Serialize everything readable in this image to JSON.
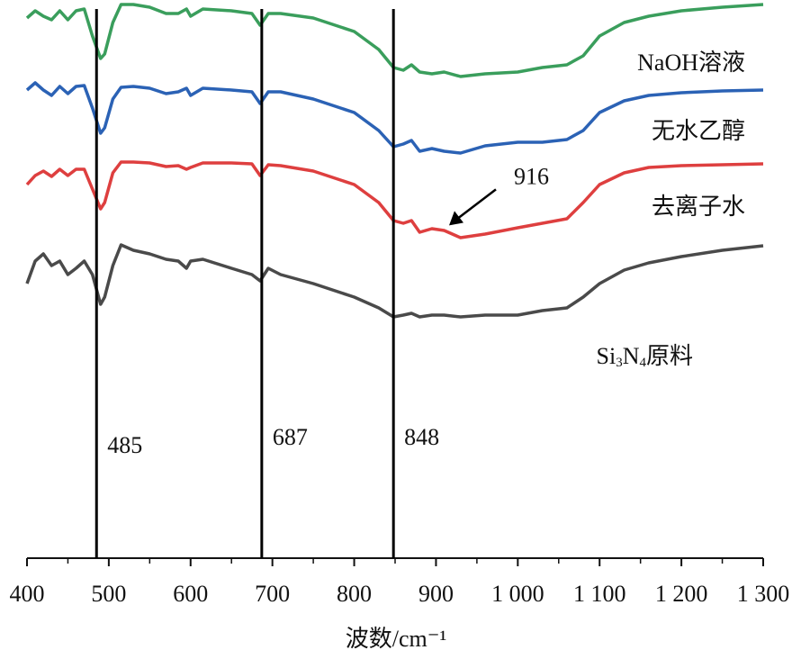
{
  "chart_data": {
    "type": "line",
    "x_label": "波数/cm⁻¹",
    "x": [
      400,
      410,
      420,
      430,
      440,
      450,
      460,
      470,
      480,
      490,
      495,
      505,
      515,
      530,
      550,
      570,
      585,
      595,
      600,
      615,
      650,
      675,
      685,
      695,
      710,
      750,
      800,
      830,
      848,
      860,
      870,
      880,
      895,
      910,
      930,
      960,
      1000,
      1030,
      1060,
      1080,
      1100,
      1130,
      1160,
      1200,
      1250,
      1300
    ],
    "series": [
      {
        "name": "NaOH溶液",
        "color": "#3a9e5c",
        "values": [
          120,
          121.6,
          120.4,
          119.6,
          121.6,
          119.6,
          121.6,
          122,
          116,
          111,
          112,
          119,
          123,
          123,
          122.4,
          121,
          121,
          122,
          120.4,
          122,
          121.6,
          121,
          118.4,
          121,
          121,
          120,
          117,
          113,
          109,
          108.4,
          109.6,
          108,
          107.6,
          108,
          107,
          107.6,
          108,
          109,
          109.6,
          111.6,
          116,
          119,
          120.4,
          121.6,
          122.4,
          123
        ]
      },
      {
        "name": "无水乙醇",
        "color": "#2b62b5",
        "values": [
          104,
          105.6,
          104,
          102.8,
          104.8,
          103.2,
          104.8,
          105,
          100,
          94.4,
          95.6,
          102,
          104.6,
          104.8,
          104.4,
          103.2,
          103.6,
          104.4,
          102.8,
          104.4,
          104,
          103.6,
          101,
          103.6,
          103.6,
          102,
          99,
          95,
          91.4,
          92,
          92.8,
          90.4,
          91,
          90.4,
          90,
          91.6,
          92.4,
          92.4,
          93,
          95,
          99,
          101.6,
          102.8,
          103.4,
          103.8,
          104
        ]
      },
      {
        "name": "去离子水",
        "color": "#de3f3f",
        "values": [
          83,
          85,
          86,
          84.8,
          86.4,
          85,
          86.4,
          86.4,
          82,
          77.6,
          79,
          85.6,
          88,
          88,
          87.8,
          87,
          87.2,
          86.4,
          86.8,
          87.8,
          87.8,
          87.6,
          85,
          87.4,
          87.2,
          86,
          83,
          79,
          75,
          74.4,
          75,
          72.4,
          73.2,
          72.8,
          71.2,
          72,
          73.4,
          74.4,
          75.4,
          79,
          83,
          85.6,
          86.8,
          87.2,
          87.4,
          87.6
        ]
      },
      {
        "name": "Si3N4原料",
        "color": "#4a4a4a",
        "values": [
          61,
          66,
          67.6,
          65,
          66,
          63,
          64.4,
          66,
          63,
          56.4,
          58,
          65,
          69.6,
          68.4,
          67.6,
          66.4,
          66,
          64.4,
          66,
          66.4,
          64.4,
          63,
          61.6,
          64.4,
          63,
          61,
          58,
          55.6,
          53.6,
          54,
          54.4,
          53.6,
          54,
          54,
          53.6,
          54,
          54,
          55,
          55.6,
          58,
          61,
          64,
          65.6,
          67,
          68.4,
          69.4
        ]
      }
    ],
    "xlim": [
      400,
      1300
    ],
    "xticks": [
      400,
      500,
      600,
      700,
      800,
      900,
      {
        "value": 1000,
        "label": "1 000"
      },
      {
        "value": 1100,
        "label": "1 100"
      },
      {
        "value": 1200,
        "label": "1 200"
      },
      {
        "value": 1300,
        "label": "1 300"
      }
    ],
    "ylim": [
      0,
      124
    ],
    "vlines": [
      485,
      687,
      848
    ],
    "arrow_at": 916
  }
}
